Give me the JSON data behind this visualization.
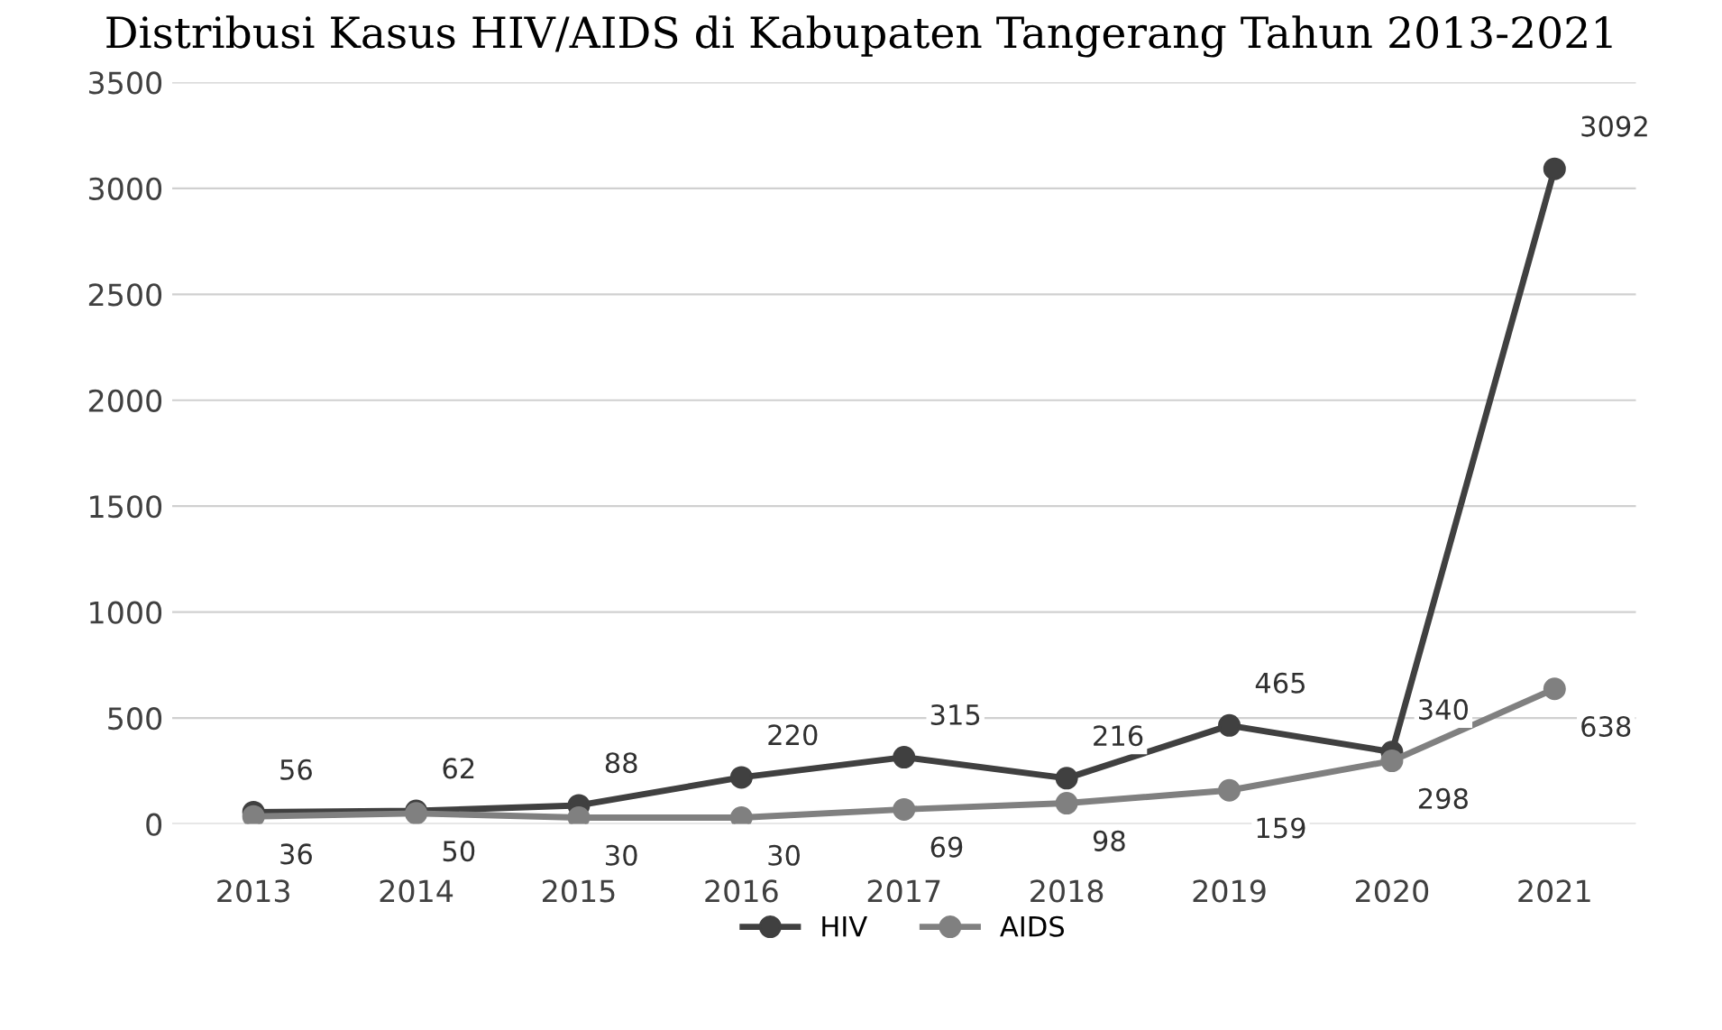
{
  "chart_data": {
    "type": "line",
    "title": "Distribusi Kasus HIV/AIDS di Kabupaten Tangerang Tahun 2013-2021",
    "categories": [
      "2013",
      "2014",
      "2015",
      "2016",
      "2017",
      "2018",
      "2019",
      "2020",
      "2021"
    ],
    "series": [
      {
        "name": "HIV",
        "color": "#404040",
        "values": [
          56,
          62,
          88,
          220,
          315,
          216,
          465,
          340,
          3092
        ]
      },
      {
        "name": "AIDS",
        "color": "#808080",
        "values": [
          36,
          50,
          30,
          30,
          69,
          98,
          159,
          298,
          638
        ]
      }
    ],
    "ylim": [
      0,
      3500
    ],
    "yticks": [
      0,
      500,
      1000,
      1500,
      2000,
      2500,
      3000,
      3500
    ],
    "grid": "y",
    "legend": "bottom",
    "marker": "circle",
    "data_labels": true
  }
}
